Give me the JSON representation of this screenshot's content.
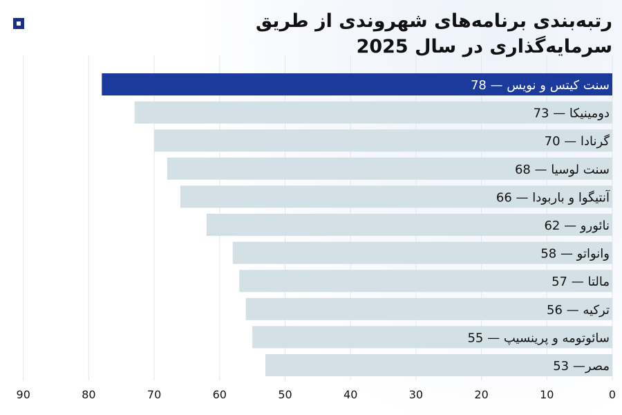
{
  "chart_data": {
    "type": "bar",
    "orientation": "horizontal",
    "direction": "rtl",
    "title": "رتبه‌بندی برنامه‌های شهروندی از طریق سرمایه‌گذاری در سال 2025",
    "categories": [
      "سنت کیتس و نویس",
      "دومینیکا",
      "گرنادا",
      "سنت لوسیا",
      "آنتیگوا و باربودا",
      "نائورو",
      "وانواتو",
      "مالتا",
      "ترکیه",
      "سائوتومه و پرینسیپ",
      "مصر"
    ],
    "values": [
      78,
      73,
      70,
      68,
      66,
      62,
      58,
      57,
      56,
      55,
      53
    ],
    "bar_labels": [
      "سنت کیتس و نویس  — 78",
      "دومینیکا — 73",
      "گرنادا — 70",
      "سنت لوسیا — 68",
      "آنتیگوا و باربودا — 66",
      "نائورو — 62",
      "وانواتو — 58",
      "مالتا — 57",
      "ترکیه — 56",
      "سائوتومه و پرینسیپ — 55",
      "مصر— 53"
    ],
    "highlight_index": 0,
    "xlim": [
      0,
      90
    ],
    "x_ticks": [
      0,
      10,
      20,
      30,
      40,
      50,
      60,
      70,
      80,
      90
    ],
    "grid": true,
    "colors": {
      "highlight": "#1b3a9c",
      "bar": "#d3e0e6",
      "highlight_text": "#ffffff",
      "text": "#111111",
      "grid": "#e3e7ec"
    }
  },
  "logo": {
    "icon": "square-logo-icon",
    "color": "#1b2f8a"
  }
}
